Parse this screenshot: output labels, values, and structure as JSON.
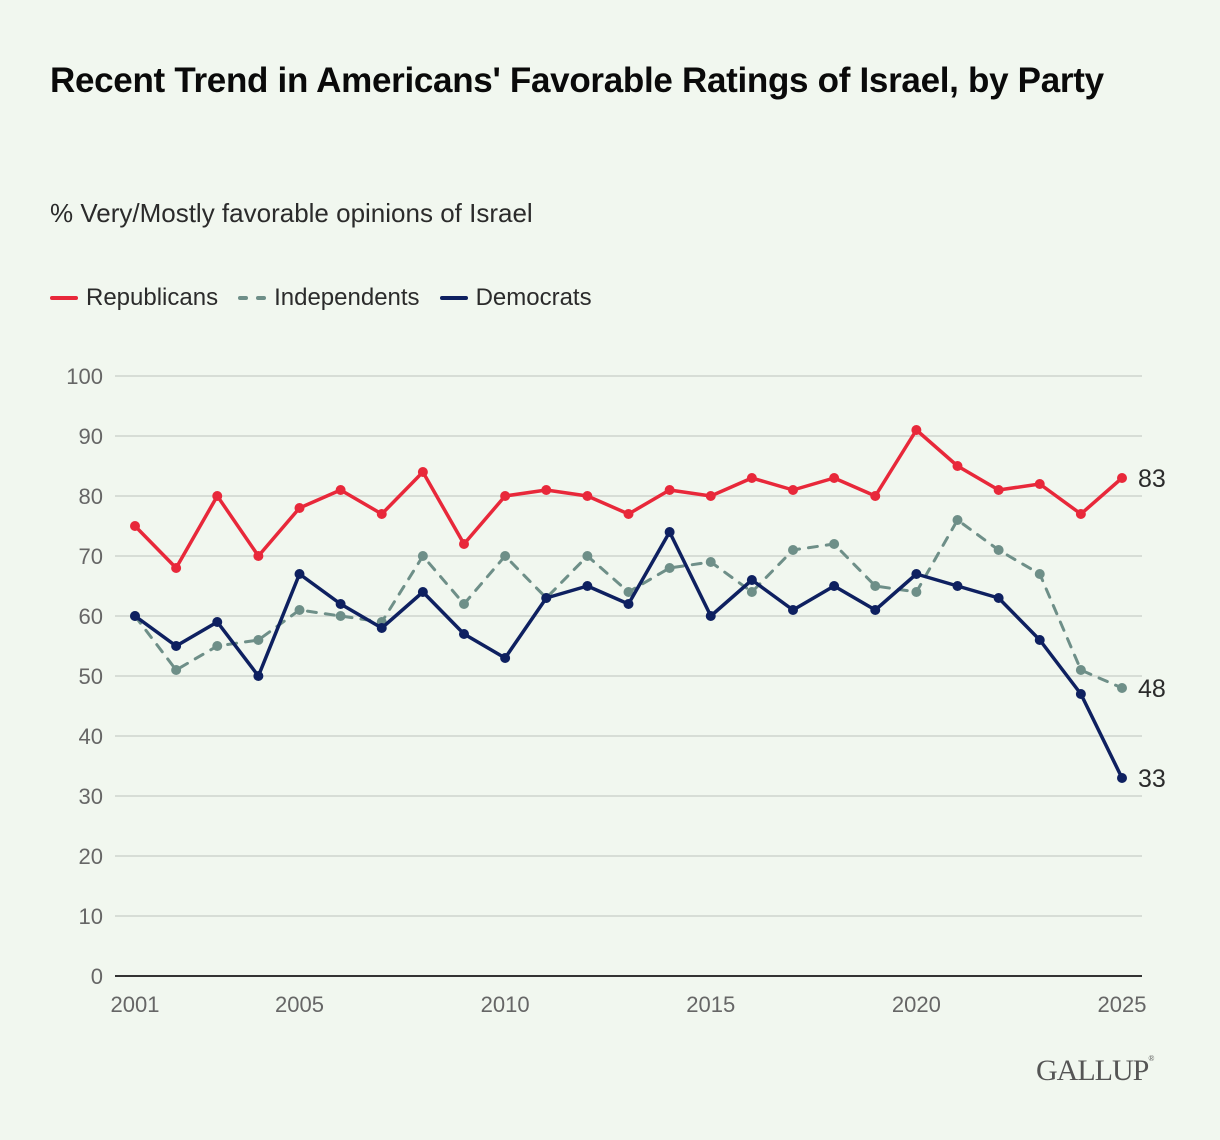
{
  "header": {
    "title": "Recent Trend in Americans' Favorable Ratings of Israel, by Party",
    "subtitle": "% Very/Mostly favorable opinions of Israel"
  },
  "legend": [
    {
      "label": "Republicans",
      "color": "#e8283a",
      "style": "solid"
    },
    {
      "label": "Independents",
      "color": "#6e8f88",
      "style": "dashed"
    },
    {
      "label": "Democrats",
      "color": "#0e2060",
      "style": "solid"
    }
  ],
  "branding": {
    "logo": "GALLUP",
    "mark": "®"
  },
  "chart_data": {
    "type": "line",
    "title": "Recent Trend in Americans' Favorable Ratings of Israel, by Party",
    "subtitle": "% Very/Mostly favorable opinions of Israel",
    "xlabel": "",
    "ylabel": "",
    "x": [
      2001,
      2002,
      2003,
      2004,
      2005,
      2006,
      2007,
      2008,
      2009,
      2010,
      2011,
      2012,
      2013,
      2014,
      2015,
      2016,
      2017,
      2018,
      2019,
      2020,
      2021,
      2022,
      2023,
      2024,
      2025
    ],
    "x_ticks": [
      "2001",
      "2005",
      "2010",
      "2015",
      "2020",
      "2025"
    ],
    "x_tick_values": [
      2001,
      2005,
      2010,
      2015,
      2020,
      2025
    ],
    "xlim": [
      2001,
      2025
    ],
    "y_ticks": [
      "0",
      "10",
      "20",
      "30",
      "40",
      "50",
      "60",
      "70",
      "80",
      "90",
      "100"
    ],
    "ylim": [
      0,
      100
    ],
    "grid": true,
    "legend_position": "top-left",
    "series": [
      {
        "name": "Republicans",
        "color": "#e8283a",
        "style": "solid",
        "values": [
          75,
          68,
          80,
          70,
          78,
          81,
          77,
          84,
          72,
          80,
          81,
          80,
          77,
          81,
          80,
          83,
          81,
          83,
          80,
          91,
          85,
          81,
          82,
          77,
          83
        ],
        "end_label": "83"
      },
      {
        "name": "Independents",
        "color": "#6e8f88",
        "style": "dashed",
        "values": [
          60,
          51,
          55,
          56,
          61,
          60,
          59,
          70,
          62,
          70,
          63,
          70,
          64,
          68,
          69,
          64,
          71,
          72,
          65,
          64,
          76,
          71,
          67,
          51,
          48
        ],
        "end_label": "48"
      },
      {
        "name": "Democrats",
        "color": "#0e2060",
        "style": "solid",
        "values": [
          60,
          55,
          59,
          50,
          67,
          62,
          58,
          64,
          57,
          53,
          63,
          65,
          62,
          74,
          60,
          66,
          61,
          65,
          61,
          67,
          65,
          63,
          56,
          47,
          33
        ],
        "end_label": "33"
      }
    ]
  }
}
